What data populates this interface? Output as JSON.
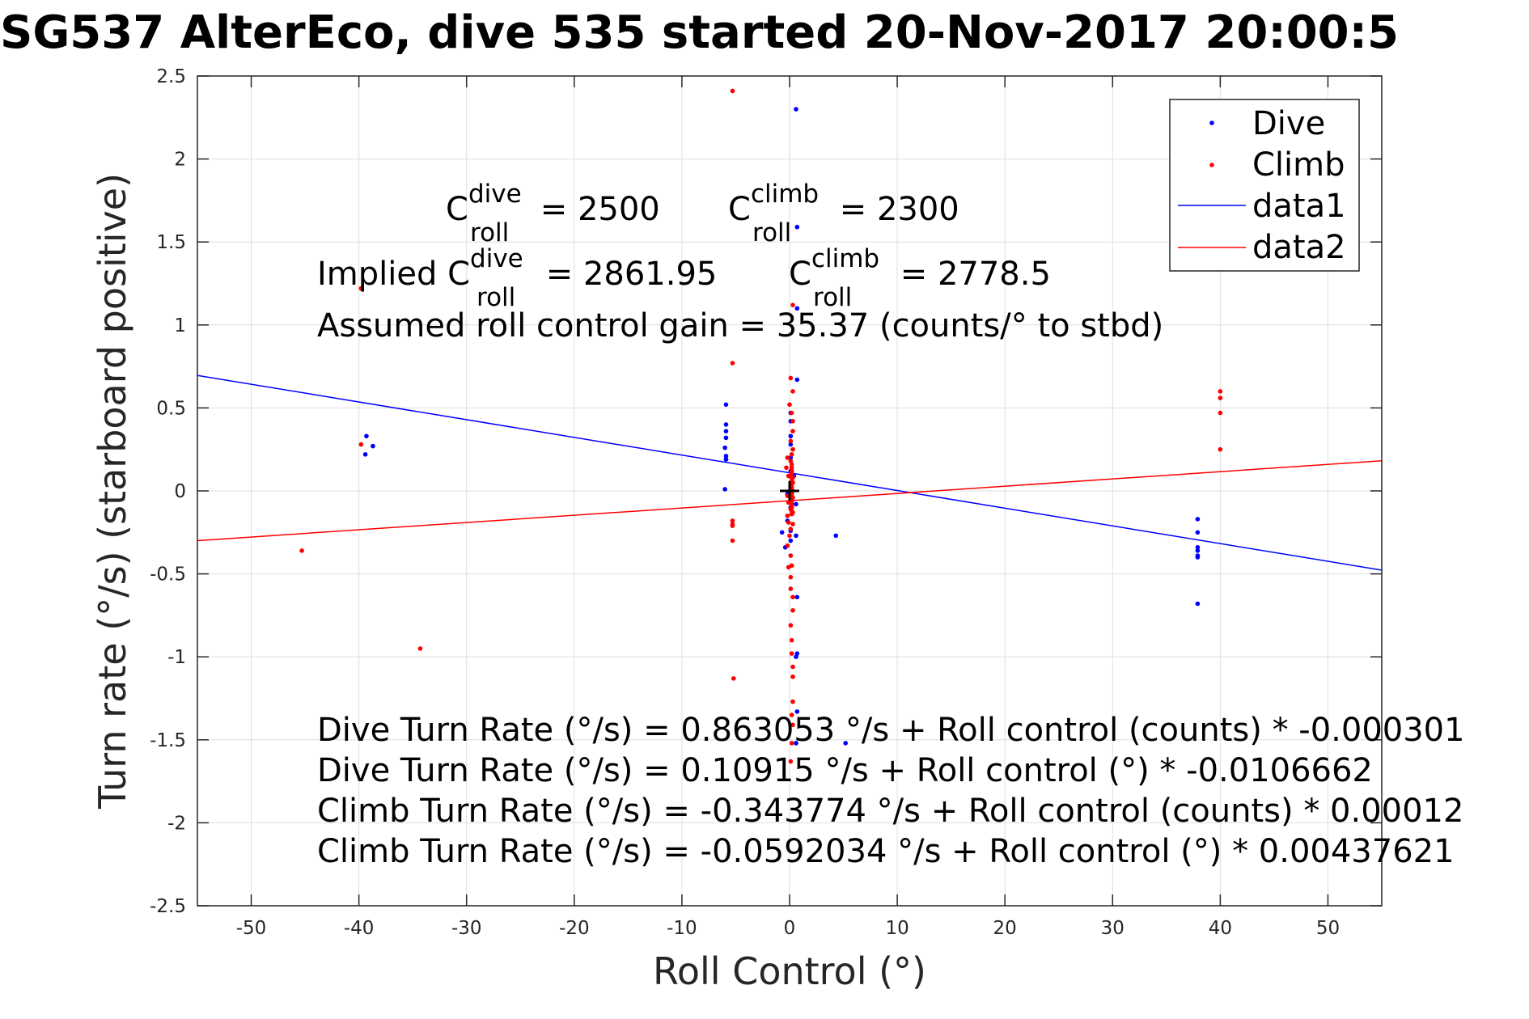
{
  "title": "SG537 AlterEco, dive 535 started 20-Nov-2017 20:00:5",
  "chart_data": {
    "type": "scatter",
    "xlabel": "Roll Control (°)",
    "ylabel": "Turn rate (°/s) (starboard positive)",
    "xlim": [
      -55,
      55
    ],
    "ylim": [
      -2.5,
      2.5
    ],
    "xticks": [
      -50,
      -40,
      -30,
      -20,
      -10,
      0,
      10,
      20,
      30,
      40,
      50
    ],
    "xtick_labels": [
      "-50",
      "-40",
      "-30",
      "-20",
      "-10",
      "0",
      "10",
      "20",
      "30",
      "40",
      "50"
    ],
    "yticks": [
      -2.5,
      -2,
      -1.5,
      -1,
      -0.5,
      0,
      0.5,
      1,
      1.5,
      2,
      2.5
    ],
    "ytick_labels": [
      "-2.5",
      "-2",
      "-1.5",
      "-1",
      "-0.5",
      "0",
      "0.5",
      "1",
      "1.5",
      "2",
      "2.5"
    ],
    "grid": true,
    "legend_position": "top-right",
    "series": [
      {
        "name": "Dive",
        "kind": "points",
        "color": "#0000ff",
        "x": [
          -39.3,
          -38.7,
          -39.4,
          -5.9,
          -5.9,
          -5.9,
          -5.9,
          -6.0,
          -5.9,
          -5.9,
          -5.9,
          -6.0,
          -0.2,
          -0.2,
          -0.7,
          -0.4,
          0.1,
          0.1,
          0.1,
          0.1,
          0.1,
          0.1,
          0.1,
          0.1,
          0.1,
          0.1,
          0.1,
          0.4,
          0.6,
          0.7,
          0.7,
          0.7,
          0.6,
          0.6,
          0.7,
          0.7,
          0.6,
          0.7,
          0.6,
          0.6,
          4.3,
          5.2,
          37.9,
          37.9,
          37.9,
          37.9,
          37.9,
          37.9,
          37.9
        ],
        "y": [
          0.33,
          0.27,
          0.22,
          0.52,
          0.4,
          0.36,
          0.32,
          0.26,
          0.21,
          0.19,
          0.19,
          0.01,
          -0.02,
          -0.18,
          -0.25,
          -0.34,
          0.47,
          0.42,
          0.33,
          0.28,
          0.2,
          0.12,
          0.05,
          -0.03,
          -0.1,
          -0.24,
          -0.3,
          0.09,
          2.3,
          1.59,
          1.1,
          0.67,
          -0.08,
          -0.27,
          -0.64,
          -0.98,
          -1.0,
          -1.33,
          -1.52,
          -1.52,
          -0.27,
          -1.52,
          -0.17,
          -0.25,
          -0.34,
          -0.36,
          -0.39,
          -0.4,
          -0.68
        ]
      },
      {
        "name": "Climb",
        "kind": "points",
        "color": "#ff0000",
        "x": [
          -39.8,
          -39.8,
          -45.3,
          -34.3,
          -5.3,
          -5.3,
          -5.3,
          -5.3,
          -5.3,
          -5.3,
          -5.2,
          -0.2,
          -0.3,
          -0.1,
          0.1,
          0.1,
          -0.2,
          -0.1,
          0.1,
          -0.2,
          -0.1,
          0.1,
          0.0,
          -0.2,
          0.1,
          -0.1,
          0.1,
          0.1,
          0.3,
          0.3,
          0.1,
          0.2,
          0.2,
          0.3,
          0.3,
          0.3,
          0.2,
          0.3,
          0.2,
          0.1,
          0.3,
          0.1,
          0.3,
          0.0,
          0.2,
          0.3,
          0.3,
          0.1,
          0.3,
          0.2,
          0.1,
          0.2,
          0.3,
          0.3,
          0.3,
          0.3,
          0.2,
          0.3,
          0.3,
          0.2,
          40.0,
          40.0,
          40.0,
          40.0
        ],
        "y": [
          1.22,
          0.28,
          -0.36,
          -0.95,
          2.41,
          0.77,
          -0.18,
          -0.2,
          -0.21,
          -0.3,
          -1.13,
          0.2,
          0.14,
          0.09,
          0.05,
          0.01,
          -0.03,
          -0.07,
          -0.11,
          -0.15,
          -0.19,
          -0.23,
          -0.27,
          -0.33,
          -0.39,
          -0.46,
          -0.52,
          -0.59,
          -0.64,
          -0.72,
          -0.81,
          -0.9,
          -0.98,
          -1.06,
          -1.12,
          -1.27,
          -1.35,
          -1.41,
          -1.52,
          -1.63,
          1.12,
          0.68,
          0.6,
          0.52,
          0.47,
          0.42,
          0.36,
          0.3,
          0.25,
          0.22,
          0.18,
          0.12,
          0.08,
          0.05,
          0.0,
          -0.04,
          -0.08,
          -0.13,
          -0.2,
          -0.45,
          0.6,
          0.56,
          0.47,
          0.25
        ],
        "extra_y_stack": {
          "x": 0.2,
          "from": -0.14,
          "to": 0.16
        }
      },
      {
        "name": "data1",
        "kind": "line",
        "color": "#0000ff",
        "intercept": 0.10915,
        "slope": -0.0106662
      },
      {
        "name": "data2",
        "kind": "line",
        "color": "#ff0000",
        "intercept": -0.0592034,
        "slope": 0.00437621
      }
    ],
    "center_marker": {
      "x": 0,
      "y": 0,
      "symbol": "+"
    },
    "annotations": {
      "c_roll_dive": {
        "base": "C",
        "sup": "dive",
        "sub": "roll",
        "rest": " = 2500"
      },
      "c_roll_climb": {
        "base": "C",
        "sup": "climb",
        "sub": "roll",
        "rest": " = 2300"
      },
      "implied_prefix": "Implied C",
      "implied_dive": {
        "sup": "dive",
        "sub": "roll",
        "rest": " = 2861.95"
      },
      "implied_climb": {
        "base": "C",
        "sup": "climb",
        "sub": "roll",
        "rest": " = 2778.5"
      },
      "gain_line": "Assumed roll control gain = 35.37 (counts/° to stbd)",
      "fit_lines": [
        "Dive Turn Rate (°/s) = 0.863053 °/s + Roll control (counts) * -0.000301",
        "Dive Turn Rate (°/s) = 0.10915 °/s + Roll control (°) * -0.0106662",
        "Climb Turn Rate (°/s) = -0.343774 °/s + Roll control (counts) * 0.00012",
        "Climb Turn Rate (°/s) = -0.0592034 °/s + Roll control (°) * 0.00437621"
      ]
    }
  }
}
